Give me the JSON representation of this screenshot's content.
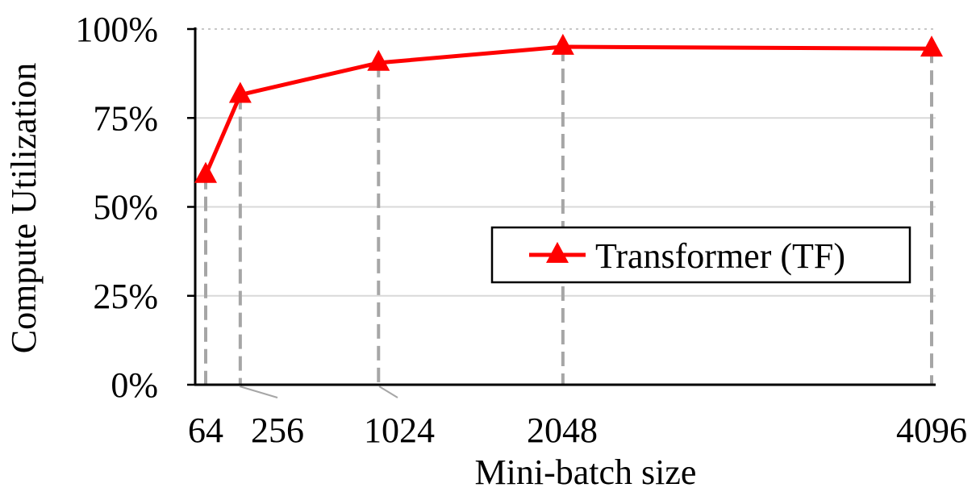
{
  "chart_data": {
    "type": "line",
    "title": "",
    "xlabel": "Mini-batch size",
    "ylabel": "Compute Utilization",
    "x": [
      64,
      256,
      1024,
      2048,
      4096
    ],
    "x_tick_labels": [
      "64",
      "256",
      "1024",
      "2048",
      "4096"
    ],
    "y_tick_labels": [
      "0%",
      "25%",
      "50%",
      "75%",
      "100%"
    ],
    "ylim": [
      0,
      100
    ],
    "grid": true,
    "legend_position": "center-right",
    "series": [
      {
        "name": "Transformer (TF)",
        "color": "#ff0000",
        "marker": "triangle",
        "values": [
          59,
          81.5,
          90.5,
          95,
          94.5
        ]
      }
    ]
  }
}
